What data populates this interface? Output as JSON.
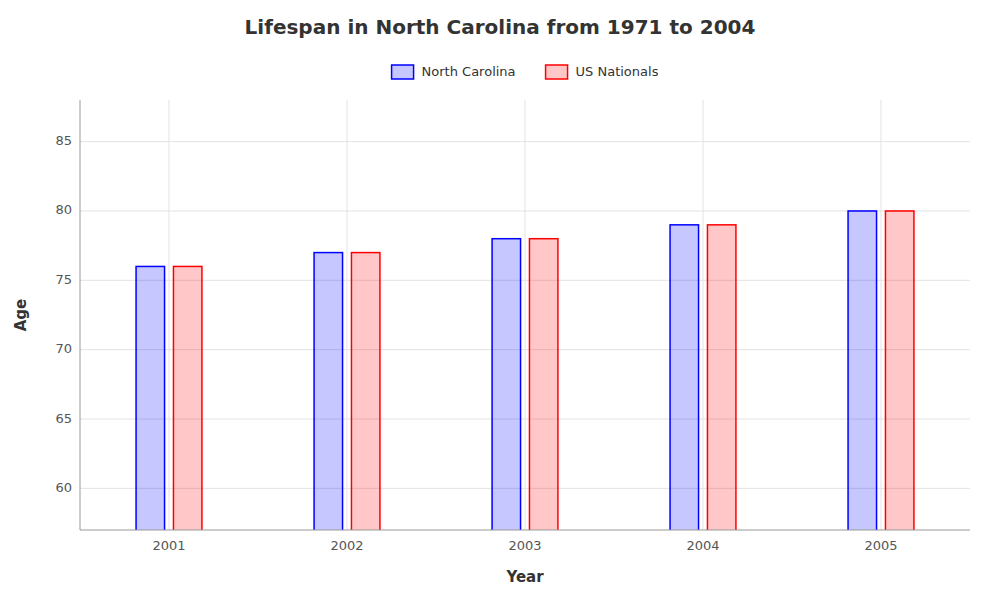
{
  "chart_data": {
    "type": "bar",
    "title": "Lifespan in North Carolina from 1971 to 2004",
    "xlabel": "Year",
    "ylabel": "Age",
    "categories": [
      "2001",
      "2002",
      "2003",
      "2004",
      "2005"
    ],
    "series": [
      {
        "name": "North Carolina",
        "color": "#0000ff",
        "values": [
          76,
          77,
          78,
          79,
          80
        ]
      },
      {
        "name": "US Nationals",
        "color": "#ff0000",
        "values": [
          76,
          77,
          78,
          79,
          80
        ]
      }
    ],
    "ylim": [
      57,
      88
    ],
    "yticks": [
      60,
      65,
      70,
      75,
      80,
      85
    ],
    "grid": true,
    "legend": "top"
  }
}
